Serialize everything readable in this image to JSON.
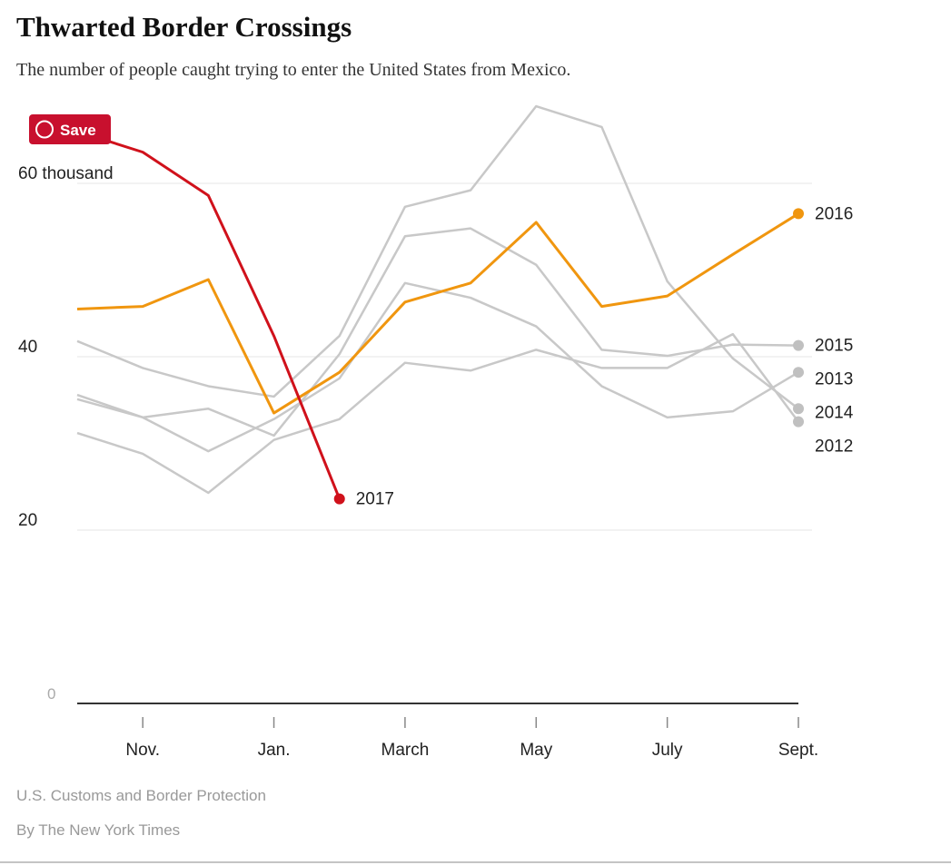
{
  "chart_data": {
    "type": "line",
    "title": "Thwarted Border Crossings",
    "subtitle": "The number of people caught trying to enter the United States from Mexico.",
    "button": "Save",
    "categories": [
      null,
      "Nov.",
      null,
      "Jan.",
      null,
      "March",
      null,
      "May",
      null,
      "July",
      null,
      "Sept."
    ],
    "series": [
      {
        "name": "2014",
        "color": "#c8c8c8",
        "values": [
          41.8,
          38.7,
          36.6,
          35.4,
          42.4,
          57.3,
          59.2,
          68.9,
          66.5,
          48.7,
          39.8,
          34
        ]
      },
      {
        "name": "2015",
        "color": "#c8c8c8",
        "values": [
          35.6,
          33,
          34,
          30.9,
          40.3,
          53.9,
          54.8,
          50.6,
          40.8,
          40.1,
          41.4,
          41.3
        ]
      },
      {
        "name": "2013",
        "color": "#c8c8c8",
        "values": [
          35.1,
          33,
          29.1,
          32.8,
          37.5,
          48.5,
          46.8,
          43.5,
          36.6,
          33,
          33.7,
          38.2
        ]
      },
      {
        "name": "2012",
        "color": "#c8c8c8",
        "values": [
          31.2,
          28.8,
          24.3,
          30.4,
          32.8,
          39.3,
          38.4,
          40.8,
          38.7,
          38.7,
          42.6,
          32.5
        ]
      },
      {
        "name": "2016",
        "color": "#f0960f",
        "values": [
          45.5,
          45.8,
          48.9,
          33.5,
          38.2,
          46.3,
          48.5,
          55.5,
          45.8,
          47,
          51.8,
          56.5
        ]
      },
      {
        "name": "2017",
        "color": "#d0111b",
        "values": [
          66,
          63.6,
          58.6,
          42.4,
          23.6,
          null,
          null,
          null,
          null,
          null,
          null,
          null
        ]
      }
    ],
    "ylim": [
      0,
      70
    ],
    "yticks": [
      0,
      20,
      40,
      {
        "value": 60,
        "label": "60 thousand"
      }
    ],
    "grid": true,
    "source": "U.S. Customs and Border Protection",
    "byline": "By The New York Times"
  }
}
